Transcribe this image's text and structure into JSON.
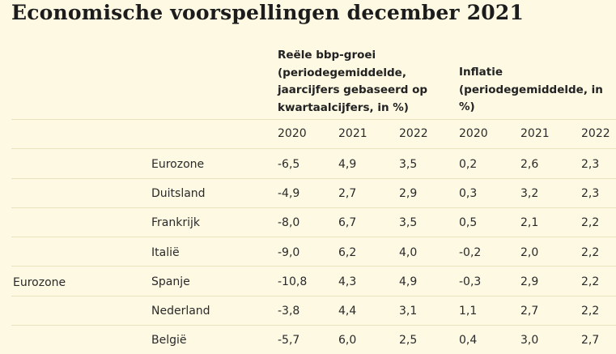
{
  "title": "Economische voorspellingen december 2021",
  "headers": {
    "gdp": [
      "Reële bbp-groei",
      "(periodegemiddelde,",
      "jaarcijfers gebaseerd op",
      "kwartaalcijfers, in %)"
    ],
    "inflation": [
      "Inflatie",
      "(periodegemiddelde, in %)"
    ]
  },
  "years": [
    "2020",
    "2021",
    "2022",
    "2020",
    "2021",
    "2022"
  ],
  "region": "Eurozone",
  "rows": [
    {
      "country": "Eurozone",
      "values": [
        "-6,5",
        "4,9",
        "3,5",
        "0,2",
        "2,6",
        "2,3"
      ]
    },
    {
      "country": "Duitsland",
      "values": [
        "-4,9",
        "2,7",
        "2,9",
        "0,3",
        "3,2",
        "2,3"
      ]
    },
    {
      "country": "Frankrijk",
      "values": [
        "-8,0",
        "6,7",
        "3,5",
        "0,5",
        "2,1",
        "2,2"
      ]
    },
    {
      "country": "Italië",
      "values": [
        "-9,0",
        "6,2",
        "4,0",
        "-0,2",
        "2,0",
        "2,2"
      ]
    },
    {
      "country": "Spanje",
      "values": [
        "-10,8",
        "4,3",
        "4,9",
        "-0,3",
        "2,9",
        "2,2"
      ]
    },
    {
      "country": "Nederland",
      "values": [
        "-3,8",
        "4,4",
        "3,1",
        "1,1",
        "2,7",
        "2,2"
      ]
    },
    {
      "country": "België",
      "values": [
        "-5,7",
        "6,0",
        "2,5",
        "0,4",
        "3,0",
        "2,7"
      ]
    }
  ]
}
